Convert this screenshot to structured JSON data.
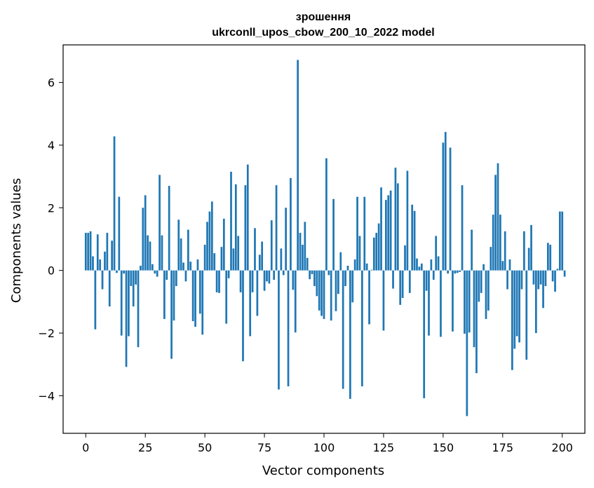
{
  "chart_data": {
    "type": "bar",
    "title": [
      "зрошення",
      "ukrconll_upos_cbow_200_10_2022 model"
    ],
    "xlabel": "Vector components",
    "ylabel": "Components values",
    "xlim": [
      -9.5,
      209.5
    ],
    "ylim": [
      -5.2,
      7.2
    ],
    "xticks": [
      0,
      25,
      50,
      75,
      100,
      125,
      150,
      175,
      200
    ],
    "yticks": [
      -4,
      -2,
      0,
      2,
      4,
      6
    ],
    "ytick_labels": [
      "−4",
      "−2",
      "0",
      "2",
      "4",
      "6"
    ],
    "bar_color": "#1f77b4",
    "grid": false,
    "legend": "none",
    "values": [
      1.2,
      1.2,
      1.25,
      0.45,
      -1.88,
      1.15,
      0.35,
      -0.6,
      0.6,
      1.2,
      -1.15,
      0.95,
      4.28,
      -0.08,
      2.35,
      -2.08,
      -0.1,
      -3.08,
      -2.1,
      -0.5,
      -1.15,
      -0.45,
      -2.45,
      0.15,
      2.0,
      2.4,
      1.12,
      0.92,
      0.2,
      -0.1,
      -0.2,
      3.05,
      1.12,
      -1.55,
      -0.3,
      2.7,
      -2.82,
      -1.6,
      -0.5,
      1.62,
      1.02,
      0.25,
      -0.35,
      1.3,
      0.28,
      -1.62,
      -1.8,
      0.35,
      -1.38,
      -2.05,
      0.82,
      1.55,
      1.88,
      2.2,
      0.55,
      -0.7,
      -0.72,
      0.75,
      1.65,
      -1.7,
      -0.25,
      3.15,
      0.7,
      2.75,
      1.1,
      -0.7,
      -2.9,
      2.72,
      3.38,
      -2.1,
      -0.7,
      1.35,
      -1.45,
      0.5,
      0.92,
      -0.65,
      -0.35,
      -0.42,
      1.6,
      -0.3,
      2.72,
      -3.8,
      0.7,
      -0.15,
      2.0,
      -3.7,
      2.95,
      -0.62,
      -1.98,
      6.72,
      1.2,
      0.82,
      1.55,
      0.4,
      -0.28,
      -0.12,
      -0.5,
      -0.82,
      -1.28,
      -1.45,
      -1.55,
      3.58,
      -0.15,
      -1.6,
      2.28,
      -1.3,
      -0.75,
      0.58,
      -3.78,
      -0.5,
      0.15,
      -4.1,
      -1.02,
      0.35,
      2.35,
      1.1,
      -3.7,
      2.35,
      0.22,
      -1.72,
      0.02,
      1.05,
      1.2,
      1.5,
      2.65,
      -1.92,
      2.25,
      2.4,
      2.55,
      -0.58,
      3.28,
      2.78,
      -1.1,
      -0.88,
      0.8,
      3.18,
      -0.72,
      2.1,
      1.9,
      0.38,
      0.12,
      0.22,
      -4.08,
      -0.65,
      -2.08,
      0.35,
      -0.3,
      1.1,
      0.45,
      -2.12,
      4.08,
      4.42,
      -0.1,
      3.92,
      -1.95,
      -0.1,
      -0.08,
      -0.05,
      2.72,
      -2.02,
      -4.65,
      -1.98,
      1.3,
      -2.45,
      -3.28,
      -1.0,
      -0.72,
      0.2,
      -1.55,
      -1.28,
      0.75,
      1.78,
      3.05,
      3.42,
      1.78,
      0.3,
      1.25,
      -0.6,
      0.35,
      -3.18,
      -2.5,
      -2.1,
      -2.3,
      -0.6,
      1.25,
      -2.85,
      0.72,
      1.45,
      -0.45,
      -2.0,
      -0.6,
      -0.45,
      -1.2,
      -0.5,
      0.88,
      0.82,
      -0.35,
      -0.68,
      0.05,
      1.88,
      1.88,
      -0.2
    ]
  }
}
